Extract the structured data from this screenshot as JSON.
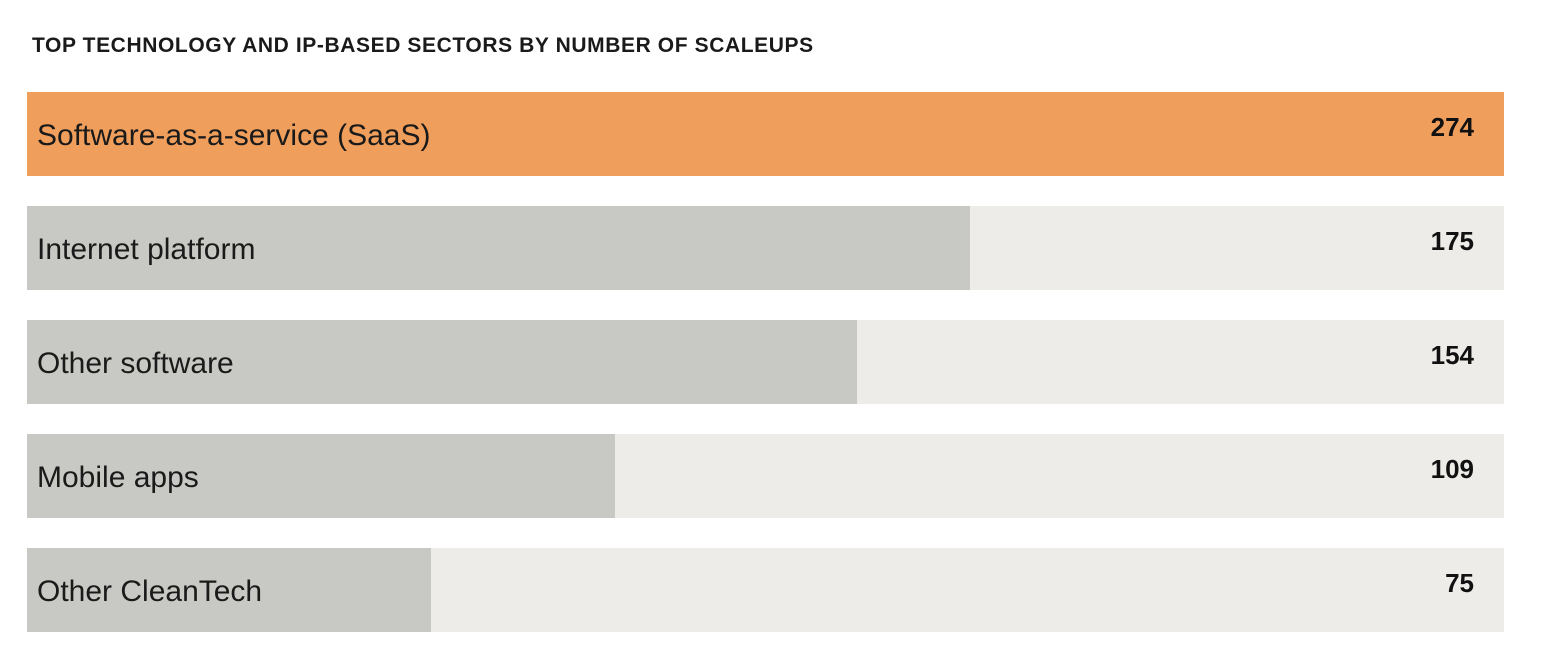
{
  "chart_data": {
    "type": "bar",
    "orientation": "horizontal",
    "title": "TOP TECHNOLOGY AND IP-BASED SECTORS BY NUMBER OF SCALEUPS",
    "categories": [
      "Software-as-a-service (SaaS)",
      "Internet platform",
      "Other software",
      "Mobile apps",
      "Other CleanTech"
    ],
    "values": [
      274,
      175,
      154,
      109,
      75
    ],
    "value_labels": [
      "274",
      "175",
      "154",
      "109",
      "75"
    ],
    "xlim": [
      0,
      274
    ],
    "grid": false,
    "legend": "none",
    "colors": {
      "highlight": "#EF9E5C",
      "bar": "#C8C9C4",
      "track": "#EDECE8"
    }
  }
}
